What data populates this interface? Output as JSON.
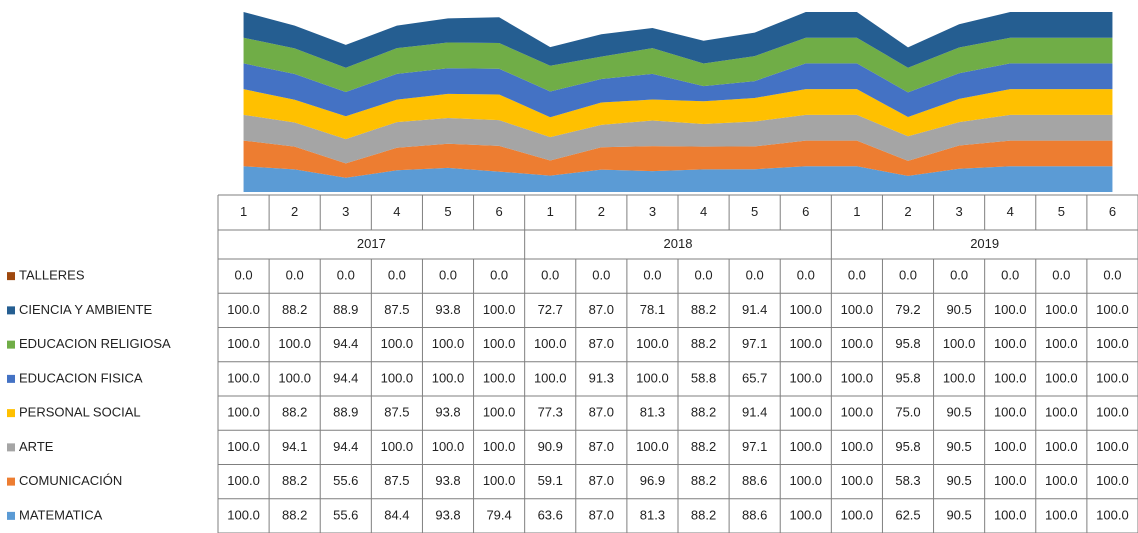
{
  "chart_data": {
    "type": "stacked-area",
    "categories": [
      "1",
      "2",
      "3",
      "4",
      "5",
      "6",
      "1",
      "2",
      "3",
      "4",
      "5",
      "6",
      "1",
      "2",
      "3",
      "4",
      "5",
      "6"
    ],
    "category_groups": [
      "2017",
      "2018",
      "2019"
    ],
    "ylim": [
      0,
      700
    ],
    "data_table": true,
    "series": [
      {
        "name": "TALLERES",
        "color": "#9e480e",
        "values": [
          0,
          0,
          0,
          0,
          0,
          0,
          0,
          0,
          0,
          0,
          0,
          0,
          0,
          0,
          0,
          0,
          0,
          0
        ],
        "value_labels": [
          "0.0",
          "0.0",
          "0.0",
          "0.0",
          "0.0",
          "0.0",
          "0.0",
          "0.0",
          "0.0",
          "0.0",
          "0.0",
          "0.0",
          "0.0",
          "0.0",
          "0.0",
          "0.0",
          "0.0",
          "0.0"
        ]
      },
      {
        "name": "CIENCIA Y AMBIENTE",
        "color": "#255e91",
        "values": [
          100,
          88.2,
          88.9,
          87.5,
          93.8,
          100,
          72.7,
          87,
          78.1,
          88.2,
          91.4,
          100,
          100,
          79.2,
          90.5,
          100,
          100,
          100
        ],
        "value_labels": [
          "100.0",
          "88.2",
          "88.9",
          "87.5",
          "93.8",
          "100.0",
          "72.7",
          "87.0",
          "78.1",
          "88.2",
          "91.4",
          "100.0",
          "100.0",
          "79.2",
          "90.5",
          "100.0",
          "100.0",
          "100.0"
        ]
      },
      {
        "name": "EDUCACION RELIGIOSA",
        "color": "#70ad47",
        "values": [
          100,
          100,
          94.4,
          100,
          100,
          100,
          100,
          87,
          100,
          88.2,
          97.1,
          100,
          100,
          95.8,
          100,
          100,
          100,
          100
        ],
        "value_labels": [
          "100.0",
          "100.0",
          "94.4",
          "100.0",
          "100.0",
          "100.0",
          "100.0",
          "87.0",
          "100.0",
          "88.2",
          "97.1",
          "100.0",
          "100.0",
          "95.8",
          "100.0",
          "100.0",
          "100.0",
          "100.0"
        ]
      },
      {
        "name": "EDUCACION FISICA",
        "color": "#4472c4",
        "values": [
          100,
          100,
          94.4,
          100,
          100,
          100,
          100,
          91.3,
          100,
          58.8,
          65.7,
          100,
          100,
          95.8,
          100,
          100,
          100,
          100
        ],
        "value_labels": [
          "100.0",
          "100.0",
          "94.4",
          "100.0",
          "100.0",
          "100.0",
          "100.0",
          "91.3",
          "100.0",
          "58.8",
          "65.7",
          "100.0",
          "100.0",
          "95.8",
          "100.0",
          "100.0",
          "100.0",
          "100.0"
        ]
      },
      {
        "name": "PERSONAL SOCIAL",
        "color": "#ffc000",
        "values": [
          100,
          88.2,
          88.9,
          87.5,
          93.8,
          100,
          77.3,
          87,
          81.3,
          88.2,
          91.4,
          100,
          100,
          75,
          90.5,
          100,
          100,
          100
        ],
        "value_labels": [
          "100.0",
          "88.2",
          "88.9",
          "87.5",
          "93.8",
          "100.0",
          "77.3",
          "87.0",
          "81.3",
          "88.2",
          "91.4",
          "100.0",
          "100.0",
          "75.0",
          "90.5",
          "100.0",
          "100.0",
          "100.0"
        ]
      },
      {
        "name": "ARTE",
        "color": "#a5a5a5",
        "values": [
          100,
          94.1,
          94.4,
          100,
          100,
          100,
          90.9,
          87,
          100,
          88.2,
          97.1,
          100,
          100,
          95.8,
          90.5,
          100,
          100,
          100
        ],
        "value_labels": [
          "100.0",
          "94.1",
          "94.4",
          "100.0",
          "100.0",
          "100.0",
          "90.9",
          "87.0",
          "100.0",
          "88.2",
          "97.1",
          "100.0",
          "100.0",
          "95.8",
          "90.5",
          "100.0",
          "100.0",
          "100.0"
        ]
      },
      {
        "name": "COMUNICACIÓN",
        "color": "#ed7d31",
        "values": [
          100,
          88.2,
          55.6,
          87.5,
          93.8,
          100,
          59.1,
          87,
          96.9,
          88.2,
          88.6,
          100,
          100,
          58.3,
          90.5,
          100,
          100,
          100
        ],
        "value_labels": [
          "100.0",
          "88.2",
          "55.6",
          "87.5",
          "93.8",
          "100.0",
          "59.1",
          "87.0",
          "96.9",
          "88.2",
          "88.6",
          "100.0",
          "100.0",
          "58.3",
          "90.5",
          "100.0",
          "100.0",
          "100.0"
        ]
      },
      {
        "name": "MATEMATICA",
        "color": "#5b9bd5",
        "values": [
          100,
          88.2,
          55.6,
          84.4,
          93.8,
          79.4,
          63.6,
          87,
          81.3,
          88.2,
          88.6,
          100,
          100,
          62.5,
          90.5,
          100,
          100,
          100
        ],
        "value_labels": [
          "100.0",
          "88.2",
          "55.6",
          "84.4",
          "93.8",
          "79.4",
          "63.6",
          "87.0",
          "81.3",
          "88.2",
          "88.6",
          "100.0",
          "100.0",
          "62.5",
          "90.5",
          "100.0",
          "100.0",
          "100.0"
        ]
      }
    ]
  }
}
